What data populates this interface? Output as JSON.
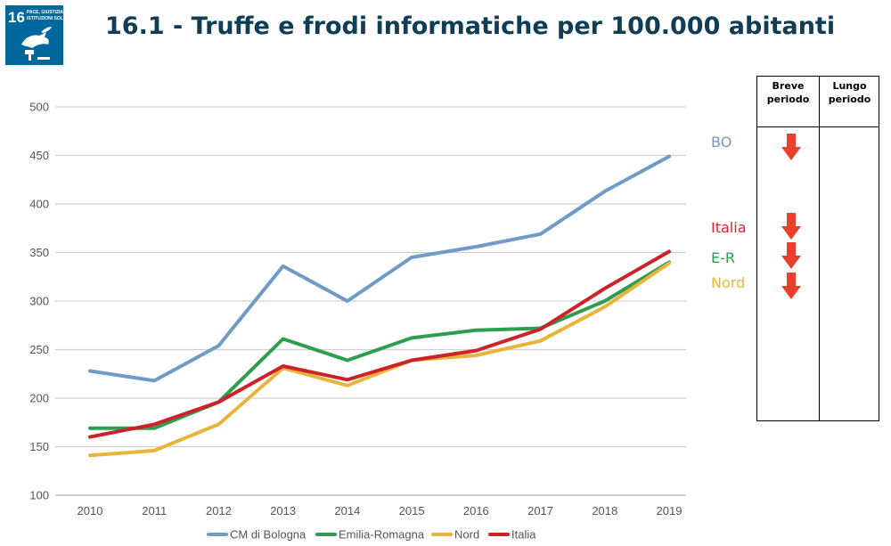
{
  "header": {
    "title": "16.1 - Truffe e frodi informatiche per 100.000 abitanti"
  },
  "logo": {
    "number": "16",
    "text_lines": [
      "PACE, GIUSTIZIA E",
      "ISTITUZIONI SOLIDE"
    ],
    "color": "#00689d"
  },
  "chart_data": {
    "type": "line",
    "x": [
      "2010",
      "2011",
      "2012",
      "2013",
      "2014",
      "2015",
      "2016",
      "2017",
      "2018",
      "2019"
    ],
    "ylim": [
      100,
      500
    ],
    "yticks": [
      "100",
      "150",
      "200",
      "250",
      "300",
      "350",
      "400",
      "450",
      "500"
    ],
    "grid": true,
    "legend_position": "bottom",
    "series": [
      {
        "name": "CM di Bologna",
        "color": "#6f9bc6",
        "values": [
          228,
          218,
          254,
          336,
          300,
          345,
          356,
          369,
          413,
          449
        ]
      },
      {
        "name": "Emilia-Romagna",
        "color": "#2e9d4f",
        "values": [
          169,
          169,
          196,
          261,
          239,
          262,
          270,
          272,
          300,
          340
        ]
      },
      {
        "name": "Nord",
        "color": "#e9b43b",
        "values": [
          141,
          146,
          173,
          231,
          213,
          239,
          244,
          259,
          294,
          339
        ]
      },
      {
        "name": "Italia",
        "color": "#cc2229",
        "values": [
          160,
          173,
          196,
          233,
          219,
          239,
          249,
          271,
          313,
          351
        ]
      }
    ],
    "end_labels": [
      {
        "text": "BO",
        "color": "#6f9bc6"
      },
      {
        "text": "Italia",
        "color": "#e02327"
      },
      {
        "text": "E-R",
        "color": "#2e9d4f"
      },
      {
        "text": "Nord",
        "color": "#f2b632"
      }
    ]
  },
  "trend_table": {
    "headers": [
      "Breve\nperiodo",
      "Lungo\nperiodo"
    ],
    "short_term_arrows": [
      "arrow-down-icon",
      "arrow-down-icon",
      "arrow-down-icon",
      "arrow-down-icon"
    ],
    "arrow_color": "#e8402a"
  }
}
